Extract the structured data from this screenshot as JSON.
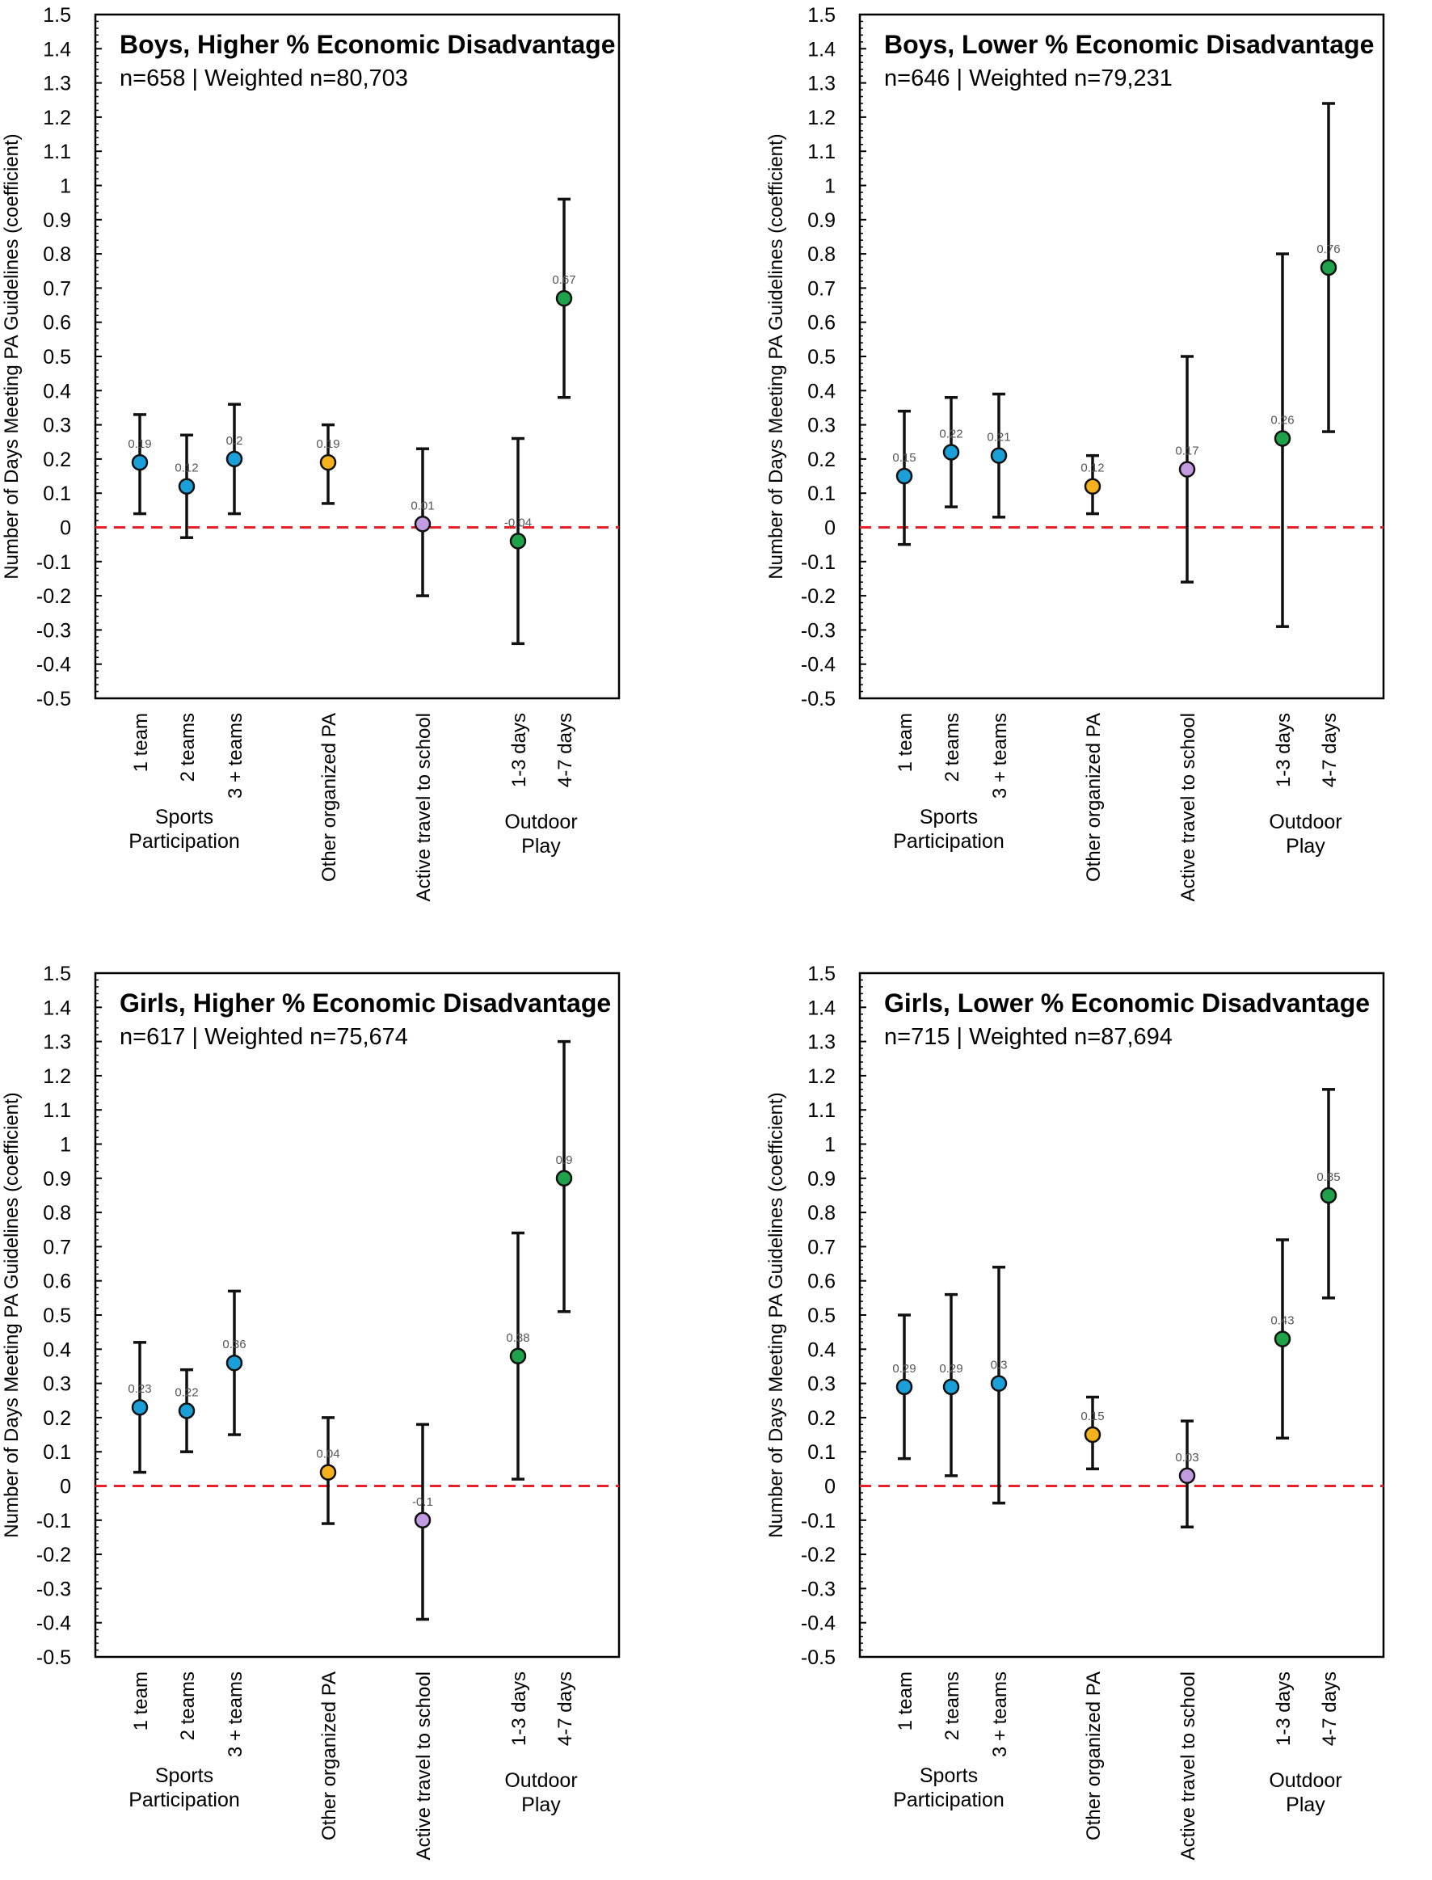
{
  "figure": {
    "y_axis_label": "Number of Days Meeting PA Guidelines (coefficient)",
    "x_labels": [
      "1 team",
      "2 teams",
      "3 + teams",
      "Other organized PA",
      "Active travel to school",
      "1-3 days",
      "4-7 days"
    ],
    "group_labels": [
      {
        "line1": "Sports",
        "line2": "Participation"
      },
      {
        "line1": "Outdoor",
        "line2": "Play"
      }
    ],
    "colors": {
      "sports": "#1a9fd8",
      "organized": "#f4b11d",
      "travel": "#c39be0",
      "outdoor": "#1fa34a",
      "reference_line": "#e8202a",
      "axis": "#000000"
    }
  },
  "chart_data": [
    {
      "type": "scatter",
      "title": "Boys, Higher % Economic Disadvantage",
      "subtitle": "n=658 | Weighted n=80,703",
      "ylim": [
        -0.5,
        1.5
      ],
      "yticks": [
        "1.5",
        "1.4",
        "1.3",
        "1.2",
        "1.1",
        "1",
        "0.9",
        "0.8",
        "0.7",
        "0.6",
        "0.5",
        "0.4",
        "0.3",
        "0.2",
        "0.1",
        "0",
        "-0.1",
        "-0.2",
        "-0.3",
        "-0.4",
        "-0.5"
      ],
      "reference_line": 0,
      "points": [
        {
          "label": "1 team",
          "value": 0.19,
          "value_label": "0.19",
          "lower": 0.04,
          "upper": 0.33,
          "color": "sports"
        },
        {
          "label": "2 teams",
          "value": 0.12,
          "value_label": "0.12",
          "lower": -0.03,
          "upper": 0.27,
          "color": "sports"
        },
        {
          "label": "3 + teams",
          "value": 0.2,
          "value_label": "0.2",
          "lower": 0.04,
          "upper": 0.36,
          "color": "sports"
        },
        {
          "label": "Other organized PA",
          "value": 0.19,
          "value_label": "0.19",
          "lower": 0.07,
          "upper": 0.3,
          "color": "organized"
        },
        {
          "label": "Active travel to school",
          "value": 0.01,
          "value_label": "0.01",
          "lower": -0.2,
          "upper": 0.23,
          "color": "travel"
        },
        {
          "label": "1-3 days",
          "value": -0.04,
          "value_label": "-0.04",
          "lower": -0.34,
          "upper": 0.26,
          "color": "outdoor"
        },
        {
          "label": "4-7 days",
          "value": 0.67,
          "value_label": "0.67",
          "lower": 0.38,
          "upper": 0.96,
          "color": "outdoor"
        }
      ]
    },
    {
      "type": "scatter",
      "title": "Boys, Lower % Economic Disadvantage",
      "subtitle": "n=646 | Weighted n=79,231",
      "ylim": [
        -0.5,
        1.5
      ],
      "yticks": [
        "1.5",
        "1.4",
        "1.3",
        "1.2",
        "1.1",
        "1",
        "0.9",
        "0.8",
        "0.7",
        "0.6",
        "0.5",
        "0.4",
        "0.3",
        "0.2",
        "0.1",
        "0",
        "-0.1",
        "-0.2",
        "-0.3",
        "-0.4",
        "-0.5"
      ],
      "reference_line": 0,
      "points": [
        {
          "label": "1 team",
          "value": 0.15,
          "value_label": "0.15",
          "lower": -0.05,
          "upper": 0.34,
          "color": "sports"
        },
        {
          "label": "2 teams",
          "value": 0.22,
          "value_label": "0.22",
          "lower": 0.06,
          "upper": 0.38,
          "color": "sports"
        },
        {
          "label": "3 + teams",
          "value": 0.21,
          "value_label": "0.21",
          "lower": 0.03,
          "upper": 0.39,
          "color": "sports"
        },
        {
          "label": "Other organized PA",
          "value": 0.12,
          "value_label": "0.12",
          "lower": 0.04,
          "upper": 0.21,
          "color": "organized"
        },
        {
          "label": "Active travel to school",
          "value": 0.17,
          "value_label": "0.17",
          "lower": -0.16,
          "upper": 0.5,
          "color": "travel"
        },
        {
          "label": "1-3 days",
          "value": 0.26,
          "value_label": "0.26",
          "lower": -0.29,
          "upper": 0.8,
          "color": "outdoor"
        },
        {
          "label": "4-7 days",
          "value": 0.76,
          "value_label": "0.76",
          "lower": 0.28,
          "upper": 1.24,
          "color": "outdoor"
        }
      ]
    },
    {
      "type": "scatter",
      "title": "Girls, Higher % Economic Disadvantage",
      "subtitle": "n=617 | Weighted n=75,674",
      "ylim": [
        -0.5,
        1.5
      ],
      "yticks": [
        "1.5",
        "1.4",
        "1.3",
        "1.2",
        "1.1",
        "1",
        "0.9",
        "0.8",
        "0.7",
        "0.6",
        "0.5",
        "0.4",
        "0.3",
        "0.2",
        "0.1",
        "0",
        "-0.1",
        "-0.2",
        "-0.3",
        "-0.4",
        "-0.5"
      ],
      "reference_line": 0,
      "points": [
        {
          "label": "1 team",
          "value": 0.23,
          "value_label": "0.23",
          "lower": 0.04,
          "upper": 0.42,
          "color": "sports"
        },
        {
          "label": "2 teams",
          "value": 0.22,
          "value_label": "0.22",
          "lower": 0.1,
          "upper": 0.34,
          "color": "sports"
        },
        {
          "label": "3 + teams",
          "value": 0.36,
          "value_label": "0.36",
          "lower": 0.15,
          "upper": 0.57,
          "color": "sports"
        },
        {
          "label": "Other organized PA",
          "value": 0.04,
          "value_label": "0.04",
          "lower": -0.11,
          "upper": 0.2,
          "color": "organized"
        },
        {
          "label": "Active travel to school",
          "value": -0.1,
          "value_label": "-0.1",
          "lower": -0.39,
          "upper": 0.18,
          "color": "travel"
        },
        {
          "label": "1-3 days",
          "value": 0.38,
          "value_label": "0.38",
          "lower": 0.02,
          "upper": 0.74,
          "color": "outdoor"
        },
        {
          "label": "4-7 days",
          "value": 0.9,
          "value_label": "0.9",
          "lower": 0.51,
          "upper": 1.3,
          "color": "outdoor"
        }
      ]
    },
    {
      "type": "scatter",
      "title": "Girls, Lower % Economic Disadvantage",
      "subtitle": "n=715 | Weighted n=87,694",
      "ylim": [
        -0.5,
        1.5
      ],
      "yticks": [
        "1.5",
        "1.4",
        "1.3",
        "1.2",
        "1.1",
        "1",
        "0.9",
        "0.8",
        "0.7",
        "0.6",
        "0.5",
        "0.4",
        "0.3",
        "0.2",
        "0.1",
        "0",
        "-0.1",
        "-0.2",
        "-0.3",
        "-0.4",
        "-0.5"
      ],
      "reference_line": 0,
      "points": [
        {
          "label": "1 team",
          "value": 0.29,
          "value_label": "0.29",
          "lower": 0.08,
          "upper": 0.5,
          "color": "sports"
        },
        {
          "label": "2 teams",
          "value": 0.29,
          "value_label": "0.29",
          "lower": 0.03,
          "upper": 0.56,
          "color": "sports"
        },
        {
          "label": "3 + teams",
          "value": 0.3,
          "value_label": "0.3",
          "lower": -0.05,
          "upper": 0.64,
          "color": "sports"
        },
        {
          "label": "Other organized PA",
          "value": 0.15,
          "value_label": "0.15",
          "lower": 0.05,
          "upper": 0.26,
          "color": "organized"
        },
        {
          "label": "Active travel to school",
          "value": 0.03,
          "value_label": "0.03",
          "lower": -0.12,
          "upper": 0.19,
          "color": "travel"
        },
        {
          "label": "1-3 days",
          "value": 0.43,
          "value_label": "0.43",
          "lower": 0.14,
          "upper": 0.72,
          "color": "outdoor"
        },
        {
          "label": "4-7 days",
          "value": 0.85,
          "value_label": "0.85",
          "lower": 0.55,
          "upper": 1.16,
          "color": "outdoor"
        }
      ]
    }
  ]
}
